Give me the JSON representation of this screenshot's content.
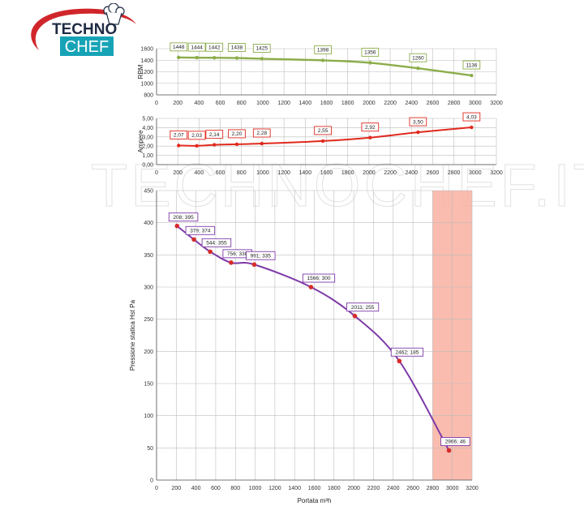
{
  "logo": {
    "line1": "TECHNO",
    "line2": "CHEF",
    "colors": {
      "swoosh": "#d0262b",
      "box": "#17a3b6",
      "text": "#1f2a44"
    }
  },
  "watermark": {
    "text": "TECHNOCHEF.IT"
  },
  "chart_data": [
    {
      "type": "line",
      "ylabel": "RPM",
      "xlabel": "",
      "xlim": [
        0,
        3200
      ],
      "ylim": [
        800,
        1600
      ],
      "xticks": [
        0,
        200,
        400,
        600,
        800,
        1000,
        1200,
        1400,
        1600,
        1800,
        2000,
        2200,
        2400,
        2600,
        2800,
        3000,
        3200
      ],
      "yticks": [
        800,
        1000,
        1200,
        1400,
        1600
      ],
      "ytick_labels": [
        "800",
        "1000",
        "1200",
        "1400",
        "1600"
      ],
      "grid": true,
      "color": "#8bad4a",
      "x": [
        208,
        379,
        544,
        756,
        991,
        1566,
        2011,
        2462,
        2966
      ],
      "values": [
        1448,
        1444,
        1442,
        1438,
        1425,
        1398,
        1356,
        1260,
        1136
      ],
      "labels": [
        "1448",
        "1444",
        "1442",
        "1438",
        "1425",
        "1398",
        "1356",
        "1260",
        "1136"
      ]
    },
    {
      "type": "line",
      "ylabel": "Ampere",
      "xlabel": "",
      "xlim": [
        0,
        3200
      ],
      "ylim": [
        0,
        5
      ],
      "xticks": [
        0,
        200,
        400,
        600,
        800,
        1000,
        1200,
        1400,
        1600,
        1800,
        2000,
        2200,
        2400,
        2600,
        2800,
        3000,
        3200
      ],
      "yticks": [
        0,
        1,
        2,
        3,
        4,
        5
      ],
      "ytick_labels": [
        "0,00",
        "1,00",
        "2,00",
        "3,00",
        "4,00",
        "5,00"
      ],
      "grid": true,
      "color": "#e0291d",
      "x": [
        208,
        379,
        544,
        756,
        991,
        1566,
        2011,
        2462,
        2966
      ],
      "values": [
        2.07,
        2.03,
        2.14,
        2.2,
        2.28,
        2.55,
        2.92,
        3.5,
        4.03
      ],
      "labels": [
        "2,07",
        "2,03",
        "2,14",
        "2,20",
        "2,28",
        "2,55",
        "2,92",
        "3,50",
        "4,03"
      ]
    },
    {
      "type": "line",
      "ylabel": "Pressione statica Hst Pa",
      "xlabel": "Portata m³h",
      "xlim": [
        0,
        3200
      ],
      "ylim": [
        0,
        450
      ],
      "xticks": [
        0,
        200,
        400,
        600,
        800,
        1000,
        1200,
        1400,
        1600,
        1800,
        2000,
        2200,
        2400,
        2600,
        2800,
        3000,
        3200
      ],
      "yticks": [
        0,
        50,
        100,
        150,
        200,
        250,
        300,
        350,
        400,
        450
      ],
      "ytick_labels": [
        "0",
        "50",
        "100",
        "150",
        "200",
        "250",
        "300",
        "350",
        "400",
        "450"
      ],
      "grid": true,
      "line_color": "#7e3aa8",
      "point_color": "#d62b2b",
      "shaded_region": {
        "x": [
          2800,
          3200
        ],
        "color": "#f8b0a0"
      },
      "x": [
        208,
        379,
        544,
        756,
        991,
        1566,
        2011,
        2462,
        2966
      ],
      "values": [
        395,
        374,
        355,
        338,
        335,
        300,
        255,
        185,
        46
      ],
      "labels": [
        "208; 395",
        "379; 374",
        "544; 355",
        "756; 338",
        "991; 335",
        "1566; 300",
        "2011; 255",
        "2462; 185",
        "2966; 46"
      ]
    }
  ]
}
